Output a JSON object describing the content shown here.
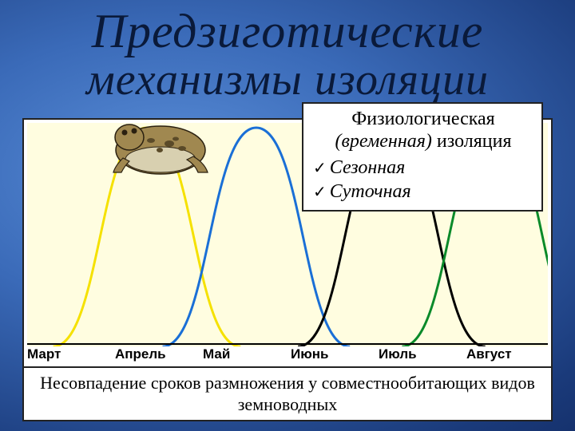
{
  "background": {
    "gradient_center": "#5a8ed8",
    "gradient_mid": "#3a6ab8",
    "gradient_outer": "#1a3a7a",
    "gradient_edge": "#0a1a4a"
  },
  "title": {
    "line1": "Предзиготические",
    "line2": "механизмы изоляции",
    "color": "#0a1a3a",
    "font_style": "italic-script",
    "fontsize_line1": 60,
    "fontsize_line2": 56
  },
  "chart": {
    "type": "line",
    "background_color": "#fffde0",
    "border_color": "#222222",
    "axis_color": "#000000",
    "x_categories": [
      "Март",
      "Апрель",
      "Май",
      "Июнь",
      "Июль",
      "Август"
    ],
    "x_label_fontsize": 17,
    "x_label_fontweight": "bold",
    "line_width": 3,
    "curves": [
      {
        "name": "curve-yellow",
        "color": "#f5e100",
        "peak_x": 0.23,
        "start_x": 0.05,
        "end_x": 0.41,
        "peak_y": 1.0
      },
      {
        "name": "curve-blue",
        "color": "#1a6fd6",
        "peak_x": 0.44,
        "start_x": 0.26,
        "end_x": 0.62,
        "peak_y": 1.0
      },
      {
        "name": "curve-black",
        "color": "#000000",
        "peak_x": 0.7,
        "start_x": 0.52,
        "end_x": 0.88,
        "peak_y": 1.0
      },
      {
        "name": "curve-green",
        "color": "#0a8a2a",
        "peak_x": 0.9,
        "start_x": 0.72,
        "end_x": 1.08,
        "peak_y": 1.0
      }
    ]
  },
  "info_card": {
    "title_part1": "Физиологическая",
    "title_part2_em": "(временная)",
    "title_part2_rest": " изоляция",
    "title_fontsize": 24,
    "items": [
      "Сезонная",
      "Суточная"
    ],
    "item_fontsize": 24,
    "checkmark": "✓",
    "background_color": "#ffffff",
    "border_color": "#222222"
  },
  "caption": {
    "text": "Несовпадение сроков размножения у совместнообитающих видов земноводных",
    "fontsize": 22,
    "background_color": "#ffffff",
    "border_color": "#222222"
  },
  "toad_image": {
    "body_color": "#a08850",
    "belly_color": "#d8d0b0",
    "spot_color": "#5a4a28",
    "outline_color": "#2a2010"
  }
}
